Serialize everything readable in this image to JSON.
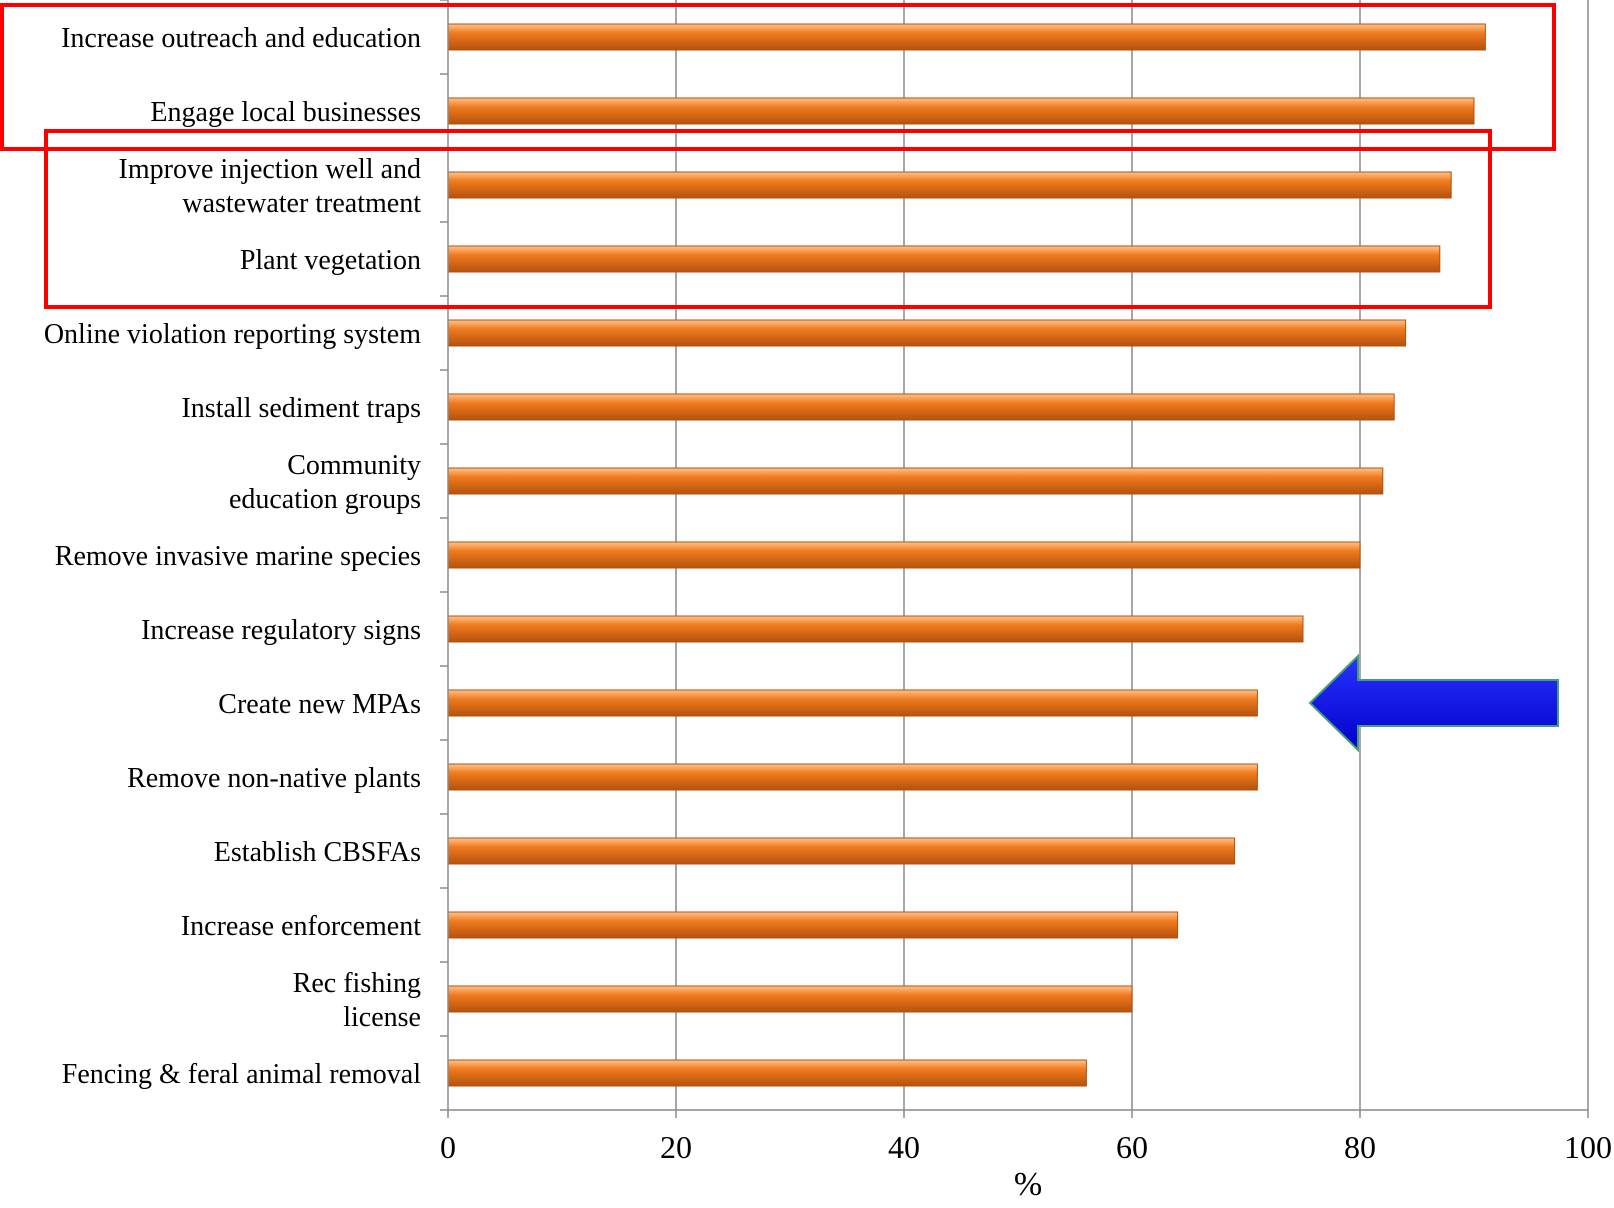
{
  "chart_data": {
    "type": "bar",
    "orientation": "horizontal",
    "title": "",
    "xlabel": "%",
    "ylabel": "",
    "xlim": [
      0,
      100
    ],
    "x_ticks": [
      "0",
      "20",
      "40",
      "60",
      "80",
      "100"
    ],
    "grid": "vertical",
    "legend": "none",
    "colors": {
      "bar": "#f07a1e",
      "bar_highlight": "#ffc48f",
      "bar_shadow": "#b4520c",
      "highlight_box": "#ff0000",
      "arrow": "#0a14e6"
    },
    "categories": [
      [
        "Increase outreach and education"
      ],
      [
        "Engage local businesses"
      ],
      [
        "Improve injection well and",
        "wastewater treatment"
      ],
      [
        "Plant vegetation"
      ],
      [
        "Online violation reporting system"
      ],
      [
        "Install sediment traps"
      ],
      [
        "Community",
        "education groups"
      ],
      [
        "Remove invasive marine species"
      ],
      [
        "Increase regulatory signs"
      ],
      [
        "Create new MPAs"
      ],
      [
        "Remove non-native plants"
      ],
      [
        "Establish CBSFAs"
      ],
      [
        "Increase enforcement"
      ],
      [
        "Rec fishing",
        "license"
      ],
      [
        "Fencing & feral animal removal"
      ]
    ],
    "values": [
      91,
      90,
      88,
      87,
      84,
      83,
      82,
      80,
      75,
      71,
      71,
      69,
      64,
      60,
      56
    ],
    "annotations": [
      {
        "type": "box",
        "color": "red",
        "covers": [
          "Increase outreach and education",
          "Engage local businesses"
        ]
      },
      {
        "type": "box",
        "color": "red",
        "covers": [
          "Improve injection well and wastewater treatment",
          "Plant vegetation"
        ]
      },
      {
        "type": "arrow",
        "color": "blue",
        "direction": "left",
        "points_to": "Create new MPAs"
      }
    ]
  }
}
